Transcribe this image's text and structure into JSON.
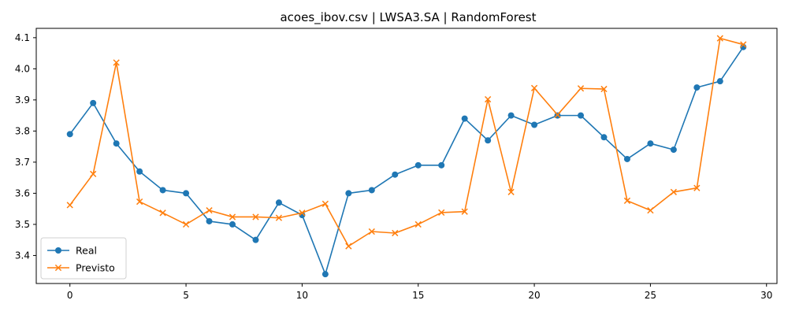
{
  "chart_data": {
    "type": "line",
    "title": "acoes_ibov.csv | LWSA3.SA | RandomForest",
    "xlabel": "",
    "ylabel": "",
    "xlim": [
      -1.45,
      30.45
    ],
    "ylim": [
      3.31,
      4.13
    ],
    "xticks": [
      0,
      5,
      10,
      15,
      20,
      25,
      30
    ],
    "yticks": [
      3.4,
      3.5,
      3.6,
      3.7,
      3.8,
      3.9,
      4.0,
      4.1
    ],
    "grid": false,
    "legend_position": "lower-left",
    "x": [
      0,
      1,
      2,
      3,
      4,
      5,
      6,
      7,
      8,
      9,
      10,
      11,
      12,
      13,
      14,
      15,
      16,
      17,
      18,
      19,
      20,
      21,
      22,
      23,
      24,
      25,
      26,
      27,
      28,
      29
    ],
    "series": [
      {
        "name": "Real",
        "marker": "circle",
        "color": "#1f77b4",
        "values": [
          3.79,
          3.89,
          3.76,
          3.67,
          3.61,
          3.6,
          3.51,
          3.5,
          3.45,
          3.57,
          3.53,
          3.34,
          3.6,
          3.61,
          3.66,
          3.69,
          3.69,
          3.84,
          3.77,
          3.85,
          3.82,
          3.85,
          3.85,
          3.78,
          3.71,
          3.76,
          3.74,
          3.94,
          3.96,
          4.07
        ]
      },
      {
        "name": "Previsto",
        "marker": "x",
        "color": "#ff7f0e",
        "values": [
          3.562,
          3.662,
          4.02,
          3.573,
          3.537,
          3.5,
          3.545,
          3.524,
          3.524,
          3.521,
          3.537,
          3.566,
          3.43,
          3.477,
          3.472,
          3.5,
          3.538,
          3.541,
          3.902,
          3.604,
          3.938,
          3.852,
          3.937,
          3.935,
          3.576,
          3.545,
          3.604,
          3.617,
          4.098,
          4.078
        ]
      }
    ]
  }
}
